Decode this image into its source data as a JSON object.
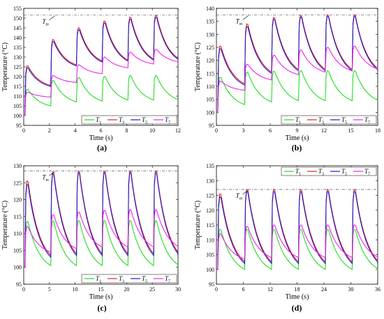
{
  "chart_data": [
    {
      "type": "line",
      "panel_label": "(a)",
      "xlabel": "Time (s)",
      "ylabel": "Temperature (°C)",
      "xlim": [
        0,
        12
      ],
      "ylim": [
        95,
        155
      ],
      "xticks": [
        0,
        2,
        4,
        6,
        8,
        10,
        12
      ],
      "yticks": [
        95,
        100,
        105,
        110,
        115,
        120,
        125,
        130,
        135,
        140,
        145,
        150,
        155
      ],
      "period": 2,
      "ref_line": {
        "label": "T",
        "sub": "m",
        "value": 151.5
      },
      "legend_position": "bottom-right",
      "series": [
        {
          "name": "T",
          "sub": "1",
          "color": "#22dd22",
          "start": 100,
          "peaks": [
            113.5,
            118,
            119.5,
            120,
            120.5,
            120.5
          ],
          "troughs": [
            105,
            107,
            107.5,
            108,
            108,
            108
          ]
        },
        {
          "name": "T",
          "sub": "3",
          "color": "#ee2020",
          "start": 100,
          "peaks": [
            125.5,
            139,
            145,
            148.5,
            150.5,
            151.5
          ],
          "troughs": [
            115.5,
            126,
            128,
            128.5,
            129,
            129
          ]
        },
        {
          "name": "T",
          "sub": "5",
          "color": "#1a1ac8",
          "start": 100,
          "peaks": [
            124.5,
            138,
            144,
            147.5,
            149.5,
            150.5
          ],
          "troughs": [
            115,
            125.5,
            127.5,
            128,
            128.5,
            128.5
          ]
        },
        {
          "name": "T",
          "sub": "7",
          "color": "#ee22ee",
          "start": 100,
          "peaks": [
            112,
            120.5,
            126,
            130,
            132.5,
            134
          ],
          "troughs": [
            109.5,
            117,
            121.5,
            124.5,
            126.5,
            127.5
          ]
        }
      ]
    },
    {
      "type": "line",
      "panel_label": "(b)",
      "xlabel": "Time (s)",
      "ylabel": "Temperature (°C)",
      "xlim": [
        0,
        18
      ],
      "ylim": [
        95,
        140
      ],
      "xticks": [
        0,
        3,
        6,
        9,
        12,
        15,
        18
      ],
      "yticks": [
        95,
        100,
        105,
        110,
        115,
        120,
        125,
        130,
        135,
        140
      ],
      "period": 3,
      "ref_line": {
        "label": "T",
        "sub": "m",
        "value": 137.5
      },
      "legend_position": "bottom-right",
      "series": [
        {
          "name": "T",
          "sub": "1",
          "color": "#22dd22",
          "start": 100,
          "peaks": [
            113.5,
            115.5,
            115.8,
            116,
            116,
            116
          ],
          "troughs": [
            103,
            104,
            104.5,
            104.5,
            104.5,
            104.5
          ]
        },
        {
          "name": "T",
          "sub": "3",
          "color": "#ee2020",
          "start": 100,
          "peaks": [
            125.5,
            134,
            136.5,
            137.3,
            137.5,
            137.5
          ],
          "troughs": [
            111,
            115.5,
            116.5,
            116.5,
            116.5,
            116.5
          ]
        },
        {
          "name": "T",
          "sub": "5",
          "color": "#1a1ac8",
          "start": 100,
          "peaks": [
            124.5,
            133,
            135.8,
            136.7,
            137,
            137
          ],
          "troughs": [
            110.5,
            115,
            116,
            116,
            116,
            116
          ]
        },
        {
          "name": "T",
          "sub": "7",
          "color": "#ee22ee",
          "start": 100,
          "peaks": [
            112,
            118.5,
            122,
            124,
            125,
            125.5
          ],
          "troughs": [
            108.5,
            112.5,
            114.5,
            115.5,
            116,
            116.5
          ]
        }
      ]
    },
    {
      "type": "line",
      "panel_label": "(c)",
      "xlabel": "Time (s)",
      "ylabel": "Temperature (°C)",
      "xlim": [
        0,
        30
      ],
      "ylim": [
        95,
        130
      ],
      "xticks": [
        0,
        5,
        10,
        15,
        20,
        25,
        30
      ],
      "yticks": [
        95,
        100,
        105,
        110,
        115,
        120,
        125,
        130
      ],
      "period": 5,
      "ref_line": {
        "label": "T",
        "sub": "m",
        "value": 128.5
      },
      "legend_position": "bottom-right",
      "series": [
        {
          "name": "T",
          "sub": "1",
          "color": "#22dd22",
          "start": 100,
          "peaks": [
            113.5,
            113.7,
            113.8,
            113.8,
            113.8,
            113.8
          ],
          "troughs": [
            100.5,
            100.5,
            100.5,
            100.5,
            100.5,
            100.5
          ]
        },
        {
          "name": "T",
          "sub": "3",
          "color": "#ee2020",
          "start": 100,
          "peaks": [
            125.5,
            128.2,
            128.5,
            128.5,
            128.5,
            128.5
          ],
          "troughs": [
            103.5,
            104,
            104,
            104,
            104,
            104
          ]
        },
        {
          "name": "T",
          "sub": "5",
          "color": "#1a1ac8",
          "start": 100,
          "peaks": [
            124.5,
            127.6,
            128,
            128,
            128,
            128
          ],
          "troughs": [
            103,
            103.5,
            103.5,
            103.5,
            103.5,
            103.5
          ]
        },
        {
          "name": "T",
          "sub": "7",
          "color": "#ee22ee",
          "start": 100,
          "peaks": [
            112,
            115.5,
            116.3,
            116.8,
            117,
            117
          ],
          "troughs": [
            104.5,
            105.5,
            106,
            106,
            106,
            106
          ]
        }
      ]
    },
    {
      "type": "line",
      "panel_label": "(d)",
      "xlabel": "Time (s)",
      "ylabel": "Temperature (°C)",
      "xlim": [
        0,
        36
      ],
      "ylim": [
        95,
        135
      ],
      "xticks": [
        0,
        6,
        12,
        18,
        24,
        30,
        36
      ],
      "yticks": [
        95,
        100,
        105,
        110,
        115,
        120,
        125,
        130,
        135
      ],
      "period": 6,
      "ref_line": {
        "label": "T",
        "sub": "m",
        "value": 127
      },
      "legend_position": "top-right",
      "series": [
        {
          "name": "T",
          "sub": "1",
          "color": "#22dd22",
          "start": 100,
          "peaks": [
            113.5,
            113.5,
            113.5,
            113.5,
            113.5,
            113.5
          ],
          "troughs": [
            100,
            100,
            100,
            100,
            100,
            100
          ]
        },
        {
          "name": "T",
          "sub": "3",
          "color": "#ee2020",
          "start": 100,
          "peaks": [
            125.5,
            127,
            127,
            127,
            127,
            127
          ],
          "troughs": [
            102.5,
            102.5,
            102.5,
            102.5,
            102.5,
            102.5
          ]
        },
        {
          "name": "T",
          "sub": "5",
          "color": "#1a1ac8",
          "start": 100,
          "peaks": [
            124.5,
            126.3,
            126.3,
            126.3,
            126.3,
            126.3
          ],
          "troughs": [
            102,
            102,
            102,
            102,
            102,
            102
          ]
        },
        {
          "name": "T",
          "sub": "7",
          "color": "#ee22ee",
          "start": 100,
          "peaks": [
            112,
            114.5,
            115,
            115,
            115,
            115
          ],
          "troughs": [
            103.5,
            104,
            104,
            104,
            104,
            104
          ]
        }
      ]
    }
  ]
}
